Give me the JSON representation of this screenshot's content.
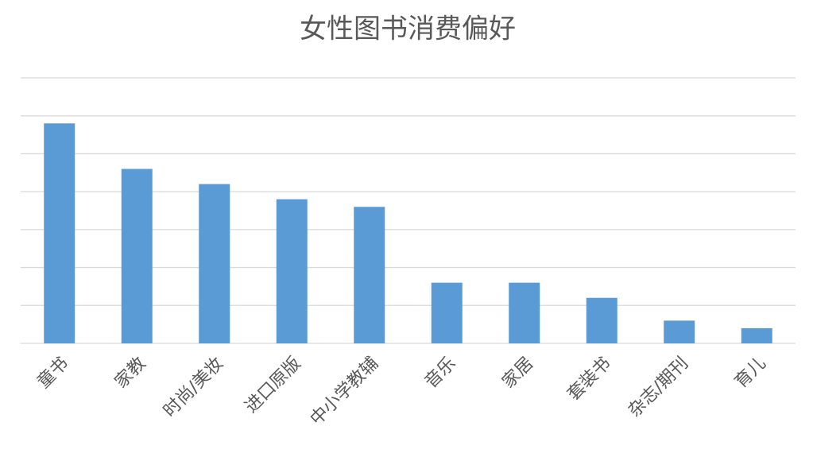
{
  "chart_data": {
    "type": "bar",
    "title": "女性图书消费偏好",
    "categories": [
      "童书",
      "家教",
      "时尚/美妆",
      "进口原版",
      "中小学教辅",
      "音乐",
      "家居",
      "套装书",
      "杂志/期刊",
      "育儿"
    ],
    "values": [
      5.8,
      4.6,
      4.2,
      3.8,
      3.6,
      1.6,
      1.6,
      1.2,
      0.6,
      0.4
    ],
    "color": "#5b9bd5",
    "ylim": [
      0,
      7
    ],
    "yticks": [
      0,
      1,
      2,
      3,
      4,
      5,
      6,
      7
    ],
    "grid": true
  }
}
